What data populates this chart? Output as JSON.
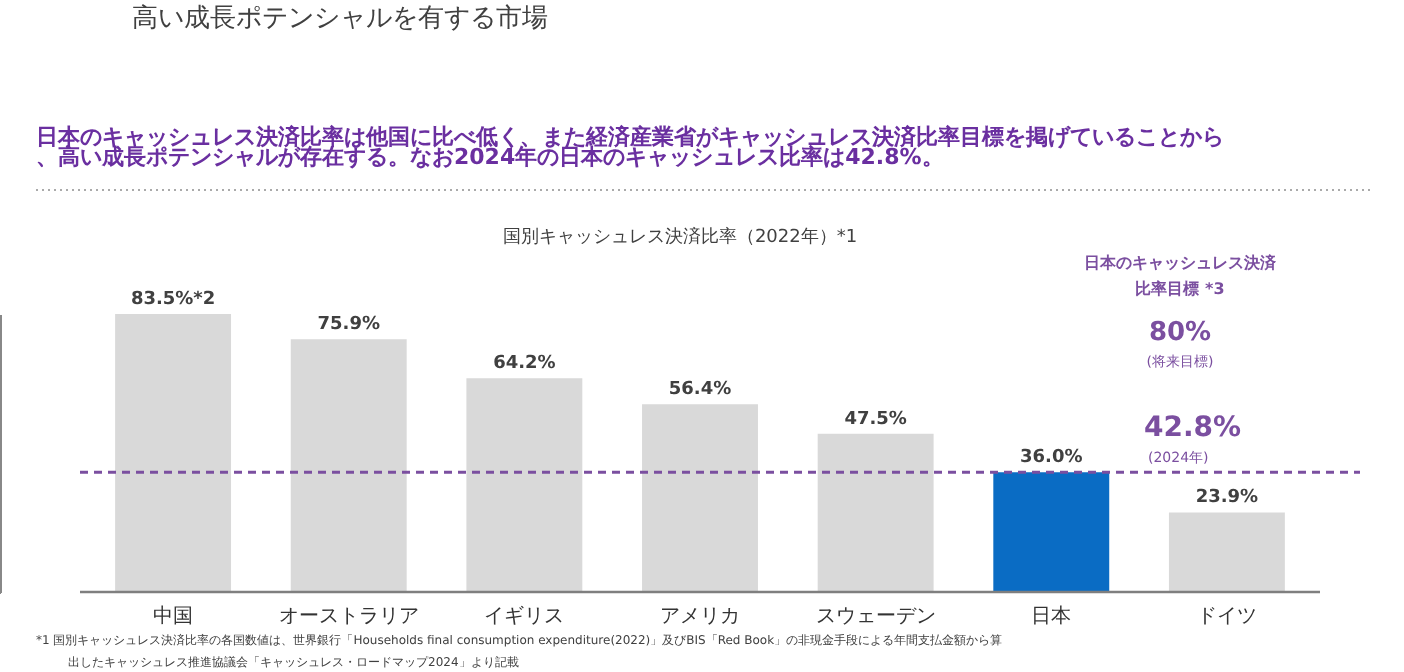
{
  "chart_data": {
    "type": "bar",
    "title": "高い成長ポテンシャルを有する市場",
    "subtitle": "日本のキャッシュレス決済比率は他国に比べ低く、また経済産業省がキャッシュレス決済比率目標を掲げていることから、高い成長ポテンシャルが存在する。なお2024年の日本のキャッシュレス比率は42.8%。",
    "categories": [
      "中国",
      "オーストラリア",
      "イギリス",
      "アメリカ",
      "スウェーデン",
      "日本",
      "ドイツ"
    ],
    "values": [
      83.5,
      75.9,
      64.2,
      56.4,
      47.5,
      36.0,
      23.9
    ],
    "colors": [
      "#d9d9d9",
      "#d9d9d9",
      "#d9d9d9",
      "#d9d9d9",
      "#d9d9d9",
      "#0a6cc4",
      "#d9d9d9"
    ],
    "value_labels": [
      "83.5%*2",
      "75.9%",
      "64.2%",
      "56.4%",
      "47.5%",
      "36.0%",
      "23.9%"
    ],
    "ref_lines": [
      {
        "axis": "y",
        "value": 36.0,
        "color": "#7b4fa0",
        "line_style": "dashed"
      }
    ],
    "annotations": [
      "国別キャッシュレス決済比率（2022年）*1",
      "日本のキャッシュレス決済",
      "比率目標 *3",
      "80%",
      "(将来目標)",
      "42.8%",
      "(2024年)",
      "*1  国別キャッシュレス決済比率の各国数値は、世界銀行「Households final consumption expenditure(2022)」及びBIS「Red Book」の非現金手段による年間支払金額から算",
      "出したキャッシュレス推進協議会「キャッシュレス・ロードマップ2024」より記載"
    ]
  }
}
